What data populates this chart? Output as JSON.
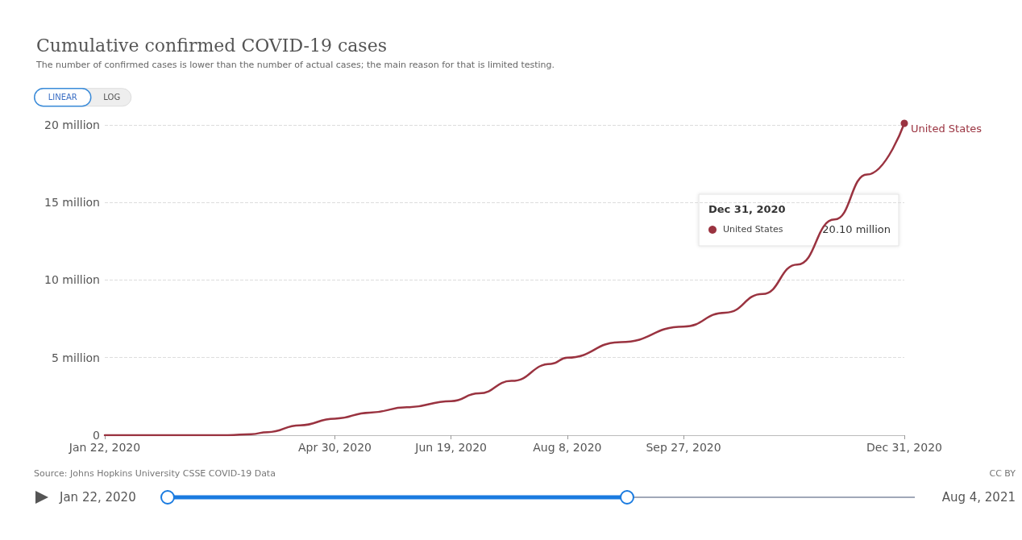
{
  "chart_data": {
    "type": "line",
    "title": "Cumulative confirmed COVID-19 cases",
    "subtitle": "The number of confirmed cases is lower than the number of actual cases; the main reason for that is limited testing.",
    "x": [
      "2020-01-22",
      "2020-02-15",
      "2020-03-01",
      "2020-03-15",
      "2020-03-25",
      "2020-04-01",
      "2020-04-15",
      "2020-04-30",
      "2020-05-15",
      "2020-05-31",
      "2020-06-19",
      "2020-07-01",
      "2020-07-15",
      "2020-08-01",
      "2020-08-08",
      "2020-08-31",
      "2020-09-27",
      "2020-10-15",
      "2020-10-31",
      "2020-11-15",
      "2020-12-01",
      "2020-12-15",
      "2020-12-31"
    ],
    "series": [
      {
        "name": "United States",
        "color": "#9a3340",
        "values": [
          0,
          0,
          0,
          0,
          0.07,
          0.2,
          0.64,
          1.07,
          1.46,
          1.8,
          2.2,
          2.7,
          3.5,
          4.6,
          5.0,
          6.0,
          7.0,
          7.9,
          9.1,
          11.0,
          13.9,
          16.8,
          20.1
        ]
      }
    ],
    "xlim": [
      "2020-01-22",
      "2020-12-31"
    ],
    "xticks": [
      {
        "value": "2020-01-22",
        "label": "Jan 22, 2020"
      },
      {
        "value": "2020-04-30",
        "label": "Apr 30, 2020"
      },
      {
        "value": "2020-06-19",
        "label": "Jun 19, 2020"
      },
      {
        "value": "2020-08-08",
        "label": "Aug 8, 2020"
      },
      {
        "value": "2020-09-27",
        "label": "Sep 27, 2020"
      },
      {
        "value": "2020-12-31",
        "label": "Dec 31, 2020"
      }
    ],
    "ylim": [
      0,
      20.1
    ],
    "yticks": [
      0,
      {
        "value": 5,
        "label": "5 million"
      },
      {
        "value": 10,
        "label": "10 million"
      },
      {
        "value": 15,
        "label": "15 million"
      },
      {
        "value": 20,
        "label": "20 million"
      }
    ],
    "grid": "y",
    "line_style": "solid",
    "annotations": [
      "Source: Johns Hopkins University CSSE COVID-19 Data",
      "CC BY",
      "LINEAR",
      "LOG",
      "Jan 22, 2020",
      "Aug 4, 2021",
      "Dec 31, 2020",
      "20.10 million"
    ]
  }
}
